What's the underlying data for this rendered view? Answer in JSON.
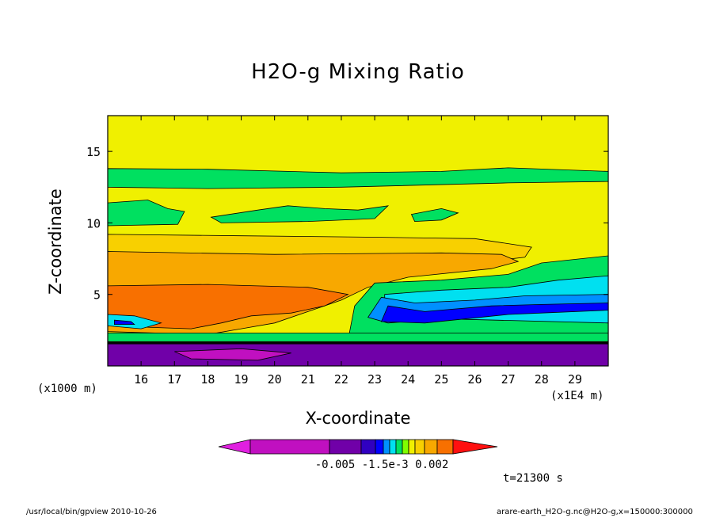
{
  "chart_data": {
    "type": "heatmap",
    "title": "H2O-g Mixing Ratio",
    "xlabel": "X-coordinate",
    "ylabel": "Z-coordinate",
    "x_unit_left": "(x1000 m)",
    "x_unit_right": "(x1E4 m)",
    "x_ticks": [
      "16",
      "17",
      "18",
      "19",
      "20",
      "21",
      "22",
      "23",
      "24",
      "25",
      "26",
      "27",
      "28",
      "29"
    ],
    "y_ticks": [
      "5",
      "10",
      "15"
    ],
    "xlim": [
      15.0,
      30.0
    ],
    "ylim": [
      0,
      17.5
    ],
    "colorbar_labels": [
      "-0.005",
      "-1.5e-3",
      "0.002"
    ],
    "colorbar_colors": [
      "#e020e0",
      "#c010c0",
      "#7000a8",
      "#3000c0",
      "#0000ff",
      "#0090ff",
      "#00e0f0",
      "#00e060",
      "#80ff00",
      "#f0f000",
      "#f8d000",
      "#f8a800",
      "#f87000",
      "#ff1010"
    ],
    "time_label": "t=21300 s"
  },
  "footer": {
    "left": "/usr/local/bin/gpview  2010-10-26",
    "right": "arare-earth_H2O-g.nc@H2O-g,x=150000:300000"
  },
  "colors": {
    "yellow": "#f0f000",
    "green": "#00e060",
    "lightorange": "#f8d000",
    "orange": "#f8a800",
    "darkorange": "#f87000",
    "cyan": "#00e0f0",
    "blue": "#0000ff",
    "lightblue": "#0090ff",
    "purple": "#7000a8",
    "magenta": "#c010c0"
  }
}
